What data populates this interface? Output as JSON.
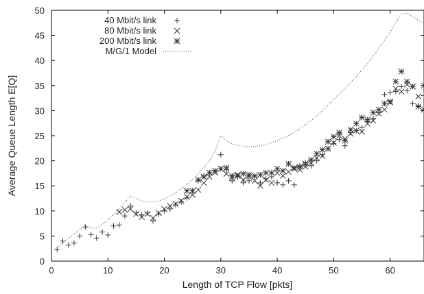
{
  "chart_data": {
    "type": "scatter",
    "title": "",
    "xlabel": "Length of TCP Flow [pkts]",
    "ylabel": "Average Queue Length E[Q]",
    "xlim": [
      0,
      66
    ],
    "ylim": [
      0,
      50
    ],
    "xticks": [
      0,
      10,
      20,
      30,
      40,
      50,
      60
    ],
    "yticks": [
      0,
      5,
      10,
      15,
      20,
      25,
      30,
      35,
      40,
      45,
      50
    ],
    "grid": false,
    "legend_position": "top-left",
    "series": [
      {
        "name": "40 Mbit/s link",
        "marker": "plus",
        "color": "#333333",
        "x": [
          1,
          2,
          3,
          4,
          5,
          6,
          7,
          8,
          9,
          10,
          11,
          12,
          13,
          14,
          15,
          16,
          17,
          18,
          19,
          20,
          21,
          22,
          23,
          24,
          25,
          26,
          27,
          28,
          29,
          30,
          31,
          32,
          33,
          34,
          35,
          36,
          37,
          38,
          39,
          40,
          41,
          42,
          43,
          44,
          45,
          46,
          47,
          48,
          49,
          50,
          51,
          52,
          53,
          54,
          55,
          56,
          57,
          58,
          59,
          60,
          61,
          62,
          63,
          64,
          65,
          66
        ],
        "y": [
          2.3,
          4.0,
          3.2,
          3.6,
          5.0,
          6.8,
          5.3,
          4.6,
          5.8,
          5.2,
          7.0,
          7.2,
          9.0,
          11.0,
          9.6,
          9.2,
          9.6,
          8.0,
          9.4,
          10.0,
          10.4,
          11.2,
          11.8,
          12.6,
          14.0,
          16.0,
          17.0,
          17.6,
          18.0,
          21.2,
          18.2,
          16.0,
          16.8,
          15.6,
          16.0,
          16.8,
          15.6,
          16.4,
          16.8,
          15.6,
          15.2,
          16.0,
          15.2,
          19.0,
          19.6,
          19.0,
          20.0,
          21.2,
          22.4,
          23.4,
          24.2,
          23.0,
          25.6,
          26.0,
          26.6,
          27.8,
          28.4,
          29.6,
          33.2,
          33.6,
          33.8,
          34.8,
          34.0,
          31.4,
          31.0,
          33.0
        ]
      },
      {
        "name": "80 Mbit/s link",
        "marker": "x",
        "color": "#333333",
        "x": [
          12,
          13,
          14,
          15,
          16,
          17,
          18,
          19,
          20,
          21,
          22,
          23,
          24,
          25,
          26,
          27,
          28,
          29,
          30,
          31,
          32,
          33,
          34,
          35,
          36,
          37,
          38,
          39,
          40,
          41,
          42,
          43,
          44,
          45,
          46,
          47,
          48,
          49,
          50,
          51,
          52,
          53,
          54,
          55,
          56,
          57,
          58,
          59,
          60,
          61,
          62,
          63,
          64,
          65,
          66
        ],
        "y": [
          9.8,
          10.2,
          10.4,
          9.4,
          8.8,
          9.4,
          8.6,
          9.6,
          10.4,
          11.0,
          11.4,
          12.0,
          12.8,
          13.2,
          14.2,
          15.6,
          16.8,
          17.6,
          18.4,
          17.4,
          16.6,
          17.2,
          16.2,
          16.8,
          16.0,
          15.0,
          16.2,
          15.6,
          17.6,
          17.0,
          17.8,
          18.4,
          18.2,
          18.8,
          19.6,
          20.6,
          21.0,
          22.4,
          23.6,
          25.0,
          24.4,
          25.4,
          26.0,
          25.8,
          27.4,
          28.0,
          29.4,
          30.2,
          31.6,
          34.4,
          33.8,
          35.2,
          34.8,
          32.8,
          35.0
        ]
      },
      {
        "name": "200 Mbit/s link",
        "marker": "asterisk",
        "color": "#333333",
        "x": [
          24,
          25,
          26,
          27,
          28,
          29,
          30,
          31,
          32,
          33,
          34,
          35,
          36,
          37,
          38,
          39,
          40,
          41,
          42,
          43,
          44,
          45,
          46,
          47,
          48,
          49,
          50,
          51,
          52,
          53,
          54,
          55,
          56,
          57,
          58,
          59,
          60,
          61,
          62,
          63,
          64,
          65,
          66
        ],
        "y": [
          14.0,
          14.0,
          16.2,
          16.8,
          17.6,
          18.0,
          18.4,
          18.6,
          17.0,
          17.0,
          17.4,
          17.2,
          17.0,
          17.2,
          17.6,
          17.6,
          18.4,
          18.0,
          19.4,
          18.6,
          18.8,
          19.4,
          20.2,
          21.4,
          22.2,
          23.8,
          24.8,
          25.6,
          24.0,
          26.2,
          27.4,
          28.6,
          28.2,
          29.6,
          30.2,
          31.4,
          31.8,
          35.8,
          37.8,
          35.8,
          34.8,
          30.8,
          30.2
        ]
      },
      {
        "name": "M/G/1 Model",
        "style": "dotted-line",
        "color": "#444444",
        "x": [
          1,
          2,
          3,
          4,
          5,
          6,
          7,
          8,
          9,
          10,
          11,
          12,
          13,
          14,
          15,
          16,
          17,
          18,
          19,
          20,
          22,
          24,
          26,
          28,
          29,
          30,
          31,
          32,
          34,
          36,
          38,
          40,
          42,
          44,
          46,
          48,
          50,
          52,
          54,
          56,
          58,
          60,
          61,
          62,
          63,
          64,
          65,
          66
        ],
        "y": [
          2.6,
          3.6,
          4.5,
          5.4,
          6.3,
          7.1,
          6.6,
          6.6,
          7.3,
          8.2,
          9.3,
          10.5,
          11.7,
          13.0,
          12.5,
          12.0,
          11.8,
          11.8,
          12.0,
          12.4,
          13.6,
          15.3,
          17.4,
          20.0,
          22.0,
          25.0,
          24.0,
          23.4,
          22.8,
          22.8,
          23.2,
          24.0,
          25.0,
          26.4,
          28.0,
          30.0,
          32.2,
          34.4,
          36.8,
          39.4,
          42.4,
          45.6,
          47.6,
          49.2,
          49.4,
          48.8,
          48.0,
          47.4
        ]
      }
    ]
  }
}
